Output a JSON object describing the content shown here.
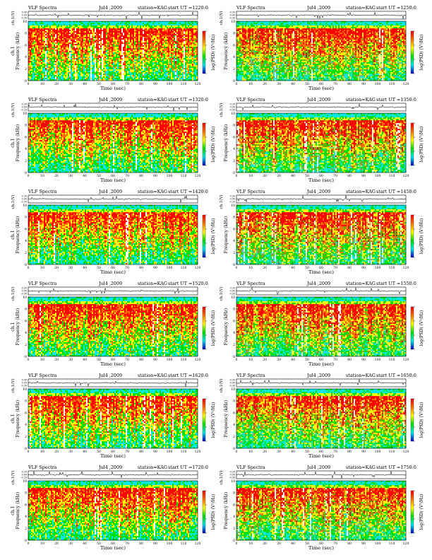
{
  "page": {
    "background": "#ffffff"
  },
  "colorbar": {
    "label": "log(PSD) (V²/Hz)",
    "ticks": [
      "",
      "",
      "",
      ""
    ],
    "stops": [
      "#ff0000",
      "#ff7000",
      "#ffff00",
      "#00e000",
      "#00e8e8",
      "#0000c8"
    ]
  },
  "palette": {
    "red": "#ff0000",
    "orange": "#ff7000",
    "yellow": "#ffff00",
    "green": "#00e000",
    "cyan": "#00e8e8",
    "white": "#ffffff",
    "trace": "#000000"
  },
  "chart_data": [
    {
      "type": "heatmap",
      "title": "VLF Spectra",
      "date": "Jul4 ,2009",
      "station": "station=KAG",
      "start": "start UT =1220:0",
      "top_ylabel": "ch.1(V)",
      "top_yticks": [
        "0.30",
        "0.00",
        "-0.30"
      ],
      "ylabel_prefix": "ch.1",
      "ylabel": "Frequency (kHz)",
      "yticks": [
        "0",
        "2",
        "4",
        "6",
        "8",
        "10"
      ],
      "ylim": [
        0,
        10
      ],
      "xlabel": "Time (sec)",
      "xticks": [
        "0",
        "10",
        "20",
        "30",
        "40",
        "50",
        "60",
        "70",
        "80",
        "90",
        "100",
        "110",
        "120"
      ],
      "xlim": [
        0,
        120
      ],
      "seed": 11
    },
    {
      "type": "heatmap",
      "title": "VLF Spectra",
      "date": "Jul4 ,2009",
      "station": "station=KAG",
      "start": "start UT =1250:0",
      "top_ylabel": "ch.1(V)",
      "top_yticks": [
        "0.30",
        "0.00",
        "-0.30"
      ],
      "ylabel_prefix": "",
      "ylabel": "Frequency (kHz)",
      "yticks": [
        "0",
        "2",
        "4",
        "6",
        "8",
        "10"
      ],
      "ylim": [
        0,
        10
      ],
      "xlabel": "Time (sec)",
      "xticks": [
        "0",
        "10",
        "20",
        "30",
        "40",
        "50",
        "60",
        "70",
        "80",
        "90",
        "100",
        "110",
        "120"
      ],
      "xlim": [
        0,
        120
      ],
      "seed": 23
    },
    {
      "type": "heatmap",
      "title": "VLF Spectra",
      "date": "Jul4 ,2009",
      "station": "station=KAG",
      "start": "start UT =1320:0",
      "top_ylabel": "ch.1(V)",
      "top_yticks": [
        "0.30",
        "0.00",
        "-0.30"
      ],
      "ylabel_prefix": "ch.1",
      "ylabel": "Frequency (kHz)",
      "yticks": [
        "0",
        "2",
        "4",
        "6",
        "8",
        "10"
      ],
      "ylim": [
        0,
        10
      ],
      "xlabel": "Time (sec)",
      "xticks": [
        "0",
        "10",
        "20",
        "30",
        "40",
        "50",
        "60",
        "70",
        "80",
        "90",
        "100",
        "110",
        "120"
      ],
      "xlim": [
        0,
        120
      ],
      "seed": 37
    },
    {
      "type": "heatmap",
      "title": "VLF Spectra",
      "date": "Jul4 ,2009",
      "station": "station=KAG",
      "start": "start UT =1350:0",
      "top_ylabel": "ch.1(V)",
      "top_yticks": [
        "0.30",
        "0.00",
        "-0.30"
      ],
      "ylabel_prefix": "",
      "ylabel": "Frequency (kHz)",
      "yticks": [
        "0",
        "2",
        "4",
        "6",
        "8",
        "10"
      ],
      "ylim": [
        0,
        10
      ],
      "xlabel": "Time (sec)",
      "xticks": [
        "0",
        "10",
        "20",
        "30",
        "40",
        "50",
        "60",
        "70",
        "80",
        "90",
        "100",
        "110",
        "120"
      ],
      "xlim": [
        0,
        120
      ],
      "seed": 41
    },
    {
      "type": "heatmap",
      "title": "VLF Spectra",
      "date": "Jul4 ,2009",
      "station": "station=KAG",
      "start": "start UT =1420:0",
      "top_ylabel": "ch.1(V)",
      "top_yticks": [
        "0.30",
        "0.00",
        "-0.30"
      ],
      "ylabel_prefix": "ch.1",
      "ylabel": "Frequency (kHz)",
      "yticks": [
        "0",
        "2",
        "4",
        "6",
        "8",
        "10"
      ],
      "ylim": [
        0,
        10
      ],
      "xlabel": "Time (sec)",
      "xticks": [
        "0",
        "10",
        "20",
        "30",
        "40",
        "50",
        "60",
        "70",
        "80",
        "90",
        "100",
        "110",
        "120"
      ],
      "xlim": [
        0,
        120
      ],
      "seed": 53
    },
    {
      "type": "heatmap",
      "title": "VLF Spectra",
      "date": "Jul4 ,2009",
      "station": "station=KAG",
      "start": "start UT =1450:0",
      "top_ylabel": "ch.1(V)",
      "top_yticks": [
        "0.30",
        "0.00",
        "-0.30"
      ],
      "ylabel_prefix": "",
      "ylabel": "Frequency (kHz)",
      "yticks": [
        "0",
        "2",
        "4",
        "6",
        "8",
        "10"
      ],
      "ylim": [
        0,
        10
      ],
      "xlabel": "Time (sec)",
      "xticks": [
        "0",
        "10",
        "20",
        "30",
        "40",
        "50",
        "60",
        "70",
        "80",
        "90",
        "100",
        "110",
        "120"
      ],
      "xlim": [
        0,
        120
      ],
      "seed": 67
    },
    {
      "type": "heatmap",
      "title": "VLF Spectra",
      "date": "Jul4 ,2009",
      "station": "station=KAG",
      "start": "start UT =1520:0",
      "top_ylabel": "ch.1(V)",
      "top_yticks": [
        "0.30",
        "0.00",
        "-0.30"
      ],
      "ylabel_prefix": "ch.1",
      "ylabel": "Frequency (kHz)",
      "yticks": [
        "0",
        "2",
        "4",
        "6",
        "8",
        "10"
      ],
      "ylim": [
        0,
        10
      ],
      "xlabel": "Time (sec)",
      "xticks": [
        "0",
        "10",
        "20",
        "30",
        "40",
        "50",
        "60",
        "70",
        "80",
        "90",
        "100",
        "110",
        "120"
      ],
      "xlim": [
        0,
        120
      ],
      "seed": 71
    },
    {
      "type": "heatmap",
      "title": "VLF Spectra",
      "date": "Jul4 ,2009",
      "station": "station=KAG",
      "start": "start UT =1550:0",
      "top_ylabel": "ch.1(V)",
      "top_yticks": [
        "0.30",
        "0.00",
        "-0.30"
      ],
      "ylabel_prefix": "",
      "ylabel": "Frequency (kHz)",
      "yticks": [
        "0",
        "2",
        "4",
        "6",
        "8",
        "10"
      ],
      "ylim": [
        0,
        10
      ],
      "xlabel": "Time (sec)",
      "xticks": [
        "0",
        "10",
        "20",
        "30",
        "40",
        "50",
        "60",
        "70",
        "80",
        "90",
        "100",
        "110",
        "120"
      ],
      "xlim": [
        0,
        120
      ],
      "seed": 83
    },
    {
      "type": "heatmap",
      "title": "VLF Spectra",
      "date": "Jul4 ,2009",
      "station": "station=KAG",
      "start": "start UT =1620:0",
      "top_ylabel": "ch.1(V)",
      "top_yticks": [
        "0.30",
        "0.00",
        "-0.30"
      ],
      "ylabel_prefix": "ch.1",
      "ylabel": "Frequency (kHz)",
      "yticks": [
        "0",
        "2",
        "4",
        "6",
        "8",
        "10"
      ],
      "ylim": [
        0,
        10
      ],
      "xlabel": "Time (sec)",
      "xticks": [
        "0",
        "10",
        "20",
        "30",
        "40",
        "50",
        "60",
        "70",
        "80",
        "90",
        "100",
        "110",
        "120"
      ],
      "xlim": [
        0,
        120
      ],
      "seed": 97
    },
    {
      "type": "heatmap",
      "title": "VLF Spectra",
      "date": "Jul4 ,2009",
      "station": "station=KAG",
      "start": "start UT =1650:0",
      "top_ylabel": "ch.1(V)",
      "top_yticks": [
        "0.30",
        "0.00",
        "-0.30"
      ],
      "ylabel_prefix": "",
      "ylabel": "Frequency (kHz)",
      "yticks": [
        "0",
        "2",
        "4",
        "6",
        "8",
        "10"
      ],
      "ylim": [
        0,
        10
      ],
      "xlabel": "Time (sec)",
      "xticks": [
        "0",
        "10",
        "20",
        "30",
        "40",
        "50",
        "60",
        "70",
        "80",
        "90",
        "100",
        "110",
        "120"
      ],
      "xlim": [
        0,
        120
      ],
      "seed": 101
    },
    {
      "type": "heatmap",
      "title": "VLF Spectra",
      "date": "Jul4 ,2009",
      "station": "station=KAG",
      "start": "start UT =1720:0",
      "top_ylabel": "ch.1(V)",
      "top_yticks": [
        "0.30",
        "0.00",
        "-0.30"
      ],
      "ylabel_prefix": "ch.1",
      "ylabel": "Frequency (kHz)",
      "yticks": [
        "0",
        "2",
        "4",
        "6",
        "8",
        "10"
      ],
      "ylim": [
        0,
        10
      ],
      "xlabel": "Time (sec)",
      "xticks": [
        "0",
        "10",
        "20",
        "30",
        "40",
        "50",
        "60",
        "70",
        "80",
        "90",
        "100",
        "110",
        "120"
      ],
      "xlim": [
        0,
        120
      ],
      "seed": 113
    },
    {
      "type": "heatmap",
      "title": "VLF Spectra",
      "date": "Jul4 ,2009",
      "station": "station=KAG",
      "start": "start UT =1750:0",
      "top_ylabel": "ch.1(V)",
      "top_yticks": [
        "0.30",
        "0.00",
        "-0.30"
      ],
      "ylabel_prefix": "",
      "ylabel": "Frequency (kHz)",
      "yticks": [
        "0",
        "2",
        "4",
        "6",
        "8",
        "10"
      ],
      "ylim": [
        0,
        10
      ],
      "xlabel": "Time (sec)",
      "xticks": [
        "0",
        "10",
        "20",
        "30",
        "40",
        "50",
        "60",
        "70",
        "80",
        "90",
        "100",
        "110",
        "120"
      ],
      "xlim": [
        0,
        120
      ],
      "seed": 127
    }
  ]
}
